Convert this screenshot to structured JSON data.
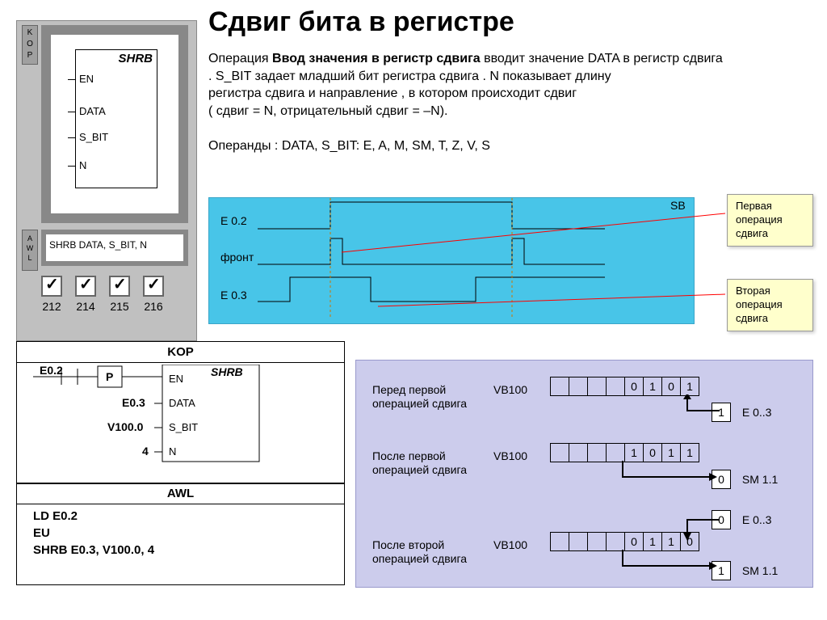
{
  "title": "Сдвиг бита в регистре",
  "device": {
    "kop": "K\nO\nP",
    "awl": "A\nW\nL",
    "block_title": "SHRB",
    "pins": [
      "EN",
      "DATA",
      "S_BIT",
      "N"
    ],
    "awl_text": "SHRB DATA, S_BIT, N",
    "checks": [
      "212",
      "214",
      "215",
      "216"
    ]
  },
  "description": {
    "line1_a": "Операция ",
    "line1_b": "Ввод значения в регистр сдвига",
    "line1_c": " вводит значение DATA в регистр сдвига . S_BIT задает младший бит регистра сдвига . N показывает длину",
    "line2": "регистра сдвига и направление , в котором происходит сдвиг",
    "line3": "( сдвиг = N, отрицательный сдвиг = –N).",
    "line4": "Операнды : DATA, S_BIT: E, A, M, SM, T, Z, V, S"
  },
  "timing": {
    "sig1": "E 0.2",
    "sig2": "фронт",
    "sig3": "E 0.3",
    "sb": "SB"
  },
  "callouts": {
    "c1": "Первая операция сдвига",
    "c2": "Вторая операция сдвига"
  },
  "kop_diagram": {
    "title": "KOP",
    "e02": "E0.2",
    "p": "P",
    "shrb": "SHRB",
    "en": "EN",
    "row1_l": "E0.3",
    "row1_r": "DATA",
    "row2_l": "V100.0",
    "row2_r": "S_BIT",
    "row3_l": "4",
    "row3_r": "N"
  },
  "awl_panel": {
    "title": "AWL",
    "l1": "LD   E0.2",
    "l2": "EU",
    "l3": "SHRB   E0.3, V100.0, 4"
  },
  "reg": {
    "row1_text": "Перед первой операцией сдвига",
    "row2_text": "После  первой операцией сдвига",
    "row3_text": "После второй операцией сдвига",
    "vb": "VB100",
    "e03": "E 0..3",
    "sm11": "SM 1.1",
    "bits1": [
      "",
      "",
      "",
      "",
      "0",
      "1",
      "0",
      "1"
    ],
    "in1": "1",
    "bits2": [
      "",
      "",
      "",
      "",
      "1",
      "0",
      "1",
      "1"
    ],
    "out2": "0",
    "in3": "0",
    "bits3": [
      "",
      "",
      "",
      "",
      "0",
      "1",
      "1",
      "0"
    ],
    "out3": "1"
  },
  "colors": {
    "timing_bg": "#48c5e8",
    "reg_bg": "#ccccec",
    "callout_bg": "#ffffcc",
    "red": "#ff0000"
  }
}
